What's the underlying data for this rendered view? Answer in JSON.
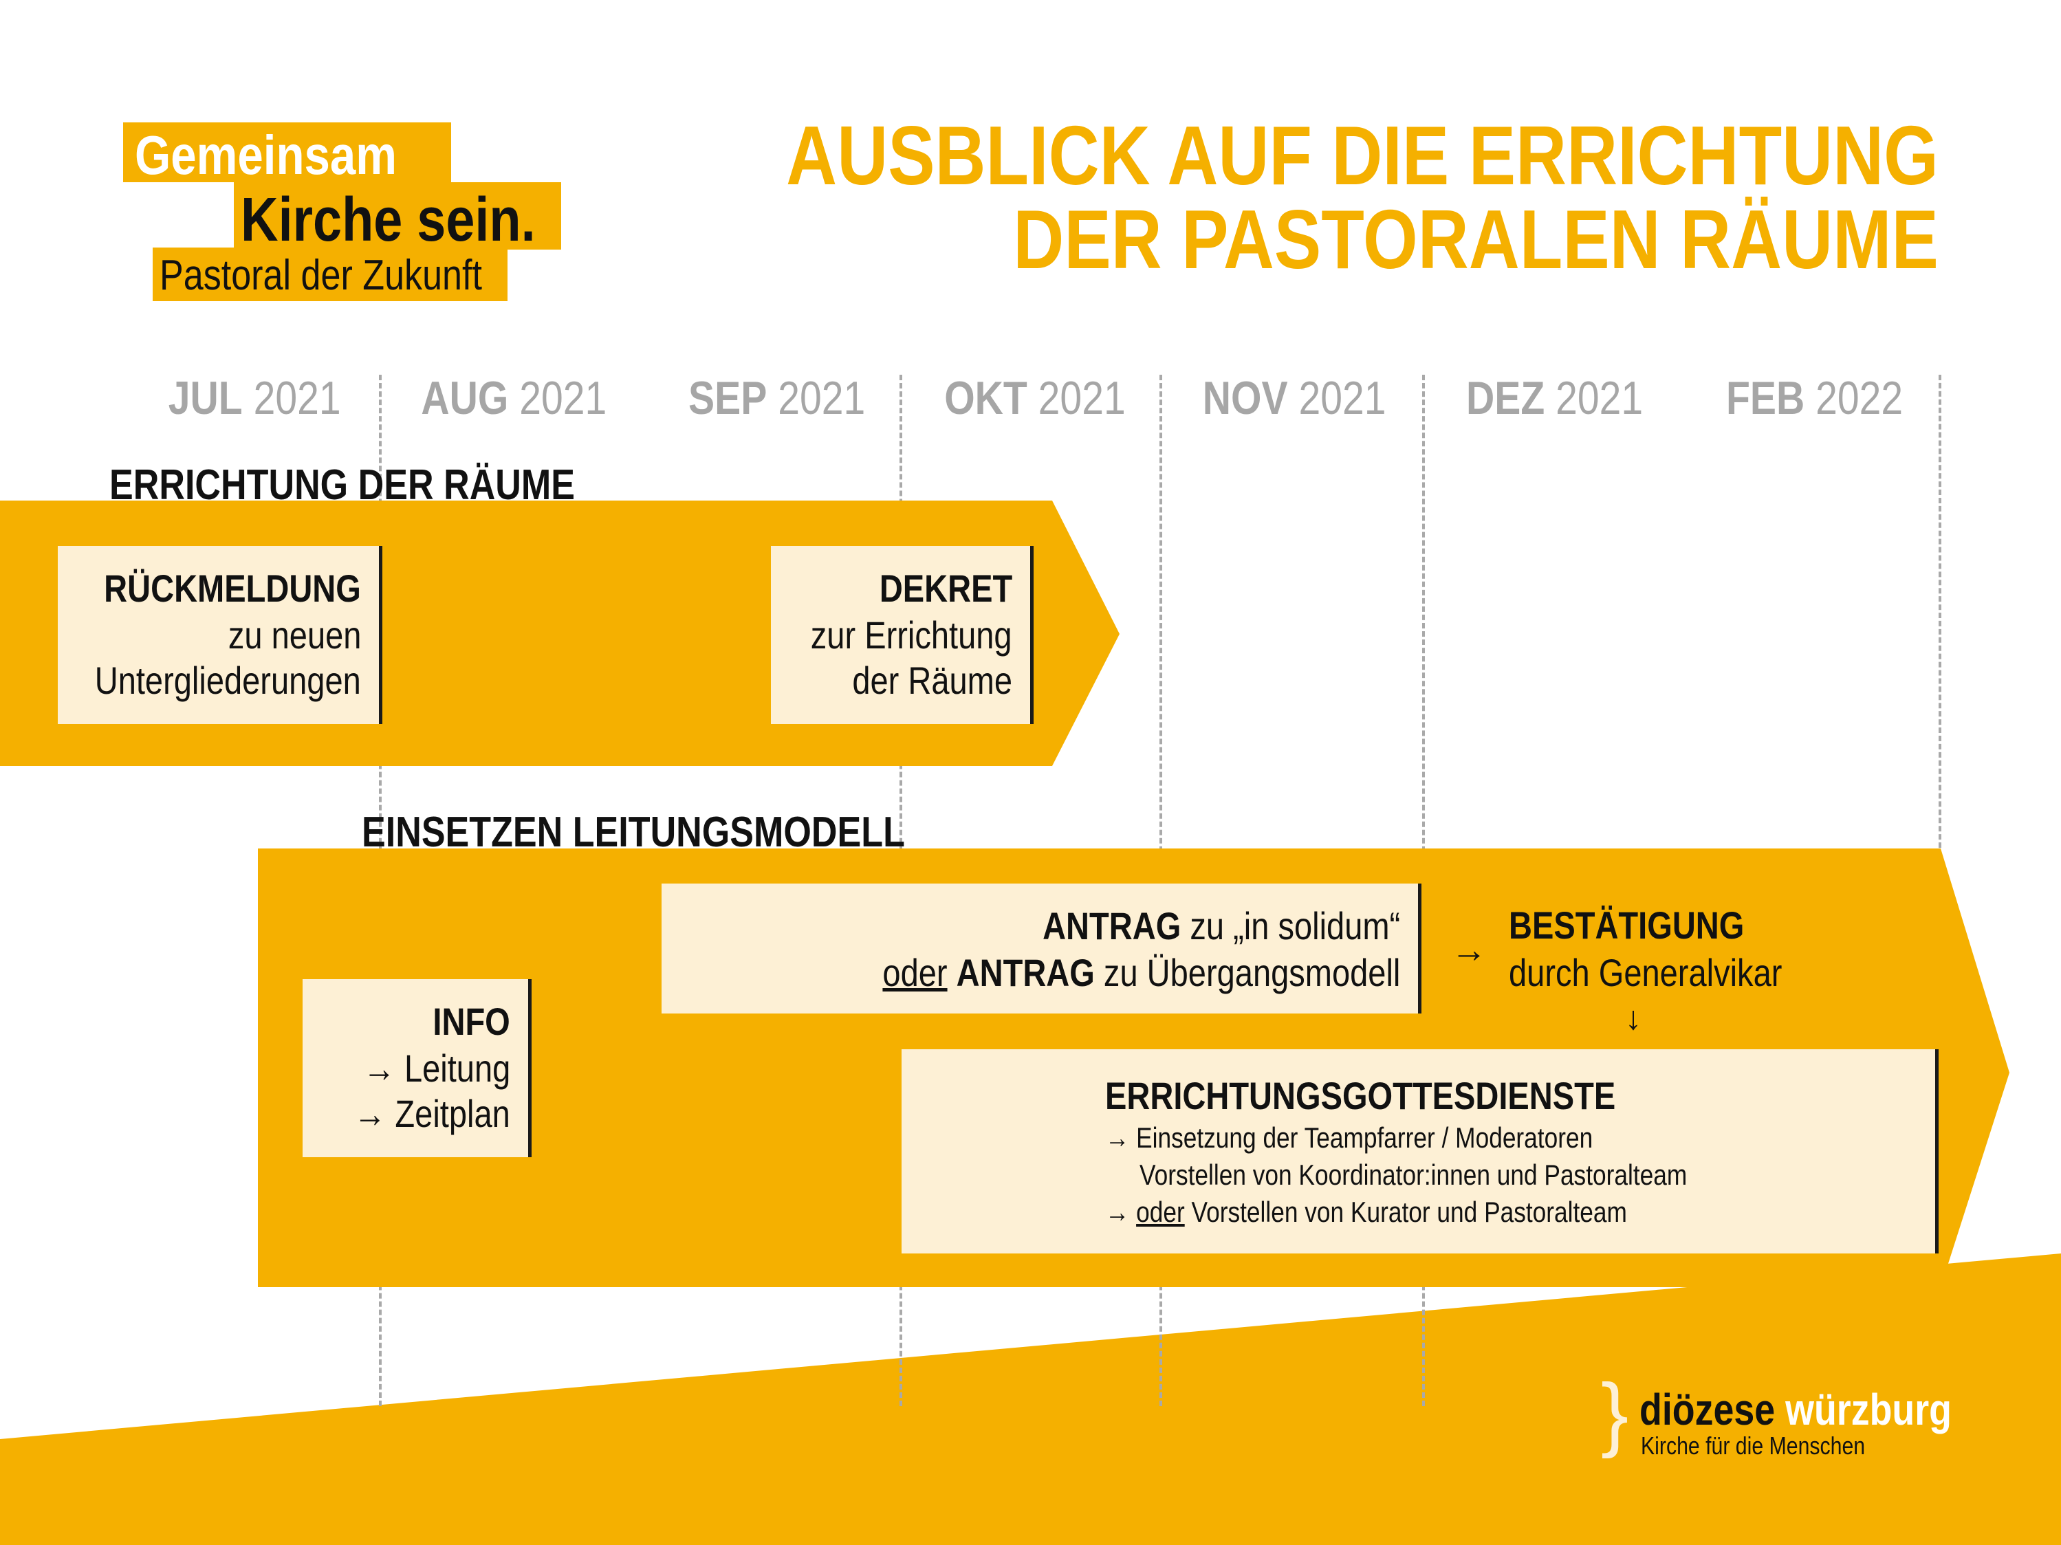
{
  "logo": {
    "line1": "Gemeinsam",
    "line2": "Kirche sein.",
    "line3": "Pastoral der Zukunft"
  },
  "title": {
    "line1": "AUSBLICK AUF DIE ERRICHTUNG",
    "line2": "DER PASTORALEN RÄUME"
  },
  "months": [
    {
      "name": "JUL",
      "year": "2021"
    },
    {
      "name": "AUG",
      "year": "2021"
    },
    {
      "name": "SEP",
      "year": "2021"
    },
    {
      "name": "OKT",
      "year": "2021"
    },
    {
      "name": "NOV",
      "year": "2021"
    },
    {
      "name": "DEZ",
      "year": "2021"
    },
    {
      "name": "FEB",
      "year": "2022"
    }
  ],
  "section1": {
    "heading": "ERRICHTUNG DER RÄUME",
    "rueckmeldung": {
      "title": "RÜCKMELDUNG",
      "line1": "zu neuen",
      "line2": "Untergliederungen"
    },
    "dekret": {
      "title": "DEKRET",
      "line1": "zur Errichtung",
      "line2": "der Räume"
    }
  },
  "section2": {
    "heading": "EINSETZEN LEITUNGSMODELL",
    "info": {
      "title": "INFO",
      "line1": "→ Leitung",
      "line2": "→ Zeitplan"
    },
    "antrag": {
      "antrag1_bold": "ANTRAG",
      "antrag1_rest": " zu „in solidum“",
      "oder": "oder",
      "antrag2_bold": "ANTRAG",
      "antrag2_rest": " zu Übergangsmodell"
    },
    "arrow_right": "→",
    "bestaetigung": {
      "title": "BESTÄTIGUNG",
      "line1": "durch Generalvikar"
    },
    "arrow_down": "↓",
    "gottesdienste": {
      "title": "ERRICHTUNGSGOTTESDIENSTE",
      "bullet1": "→ Einsetzung der Teampfarrer / Moderatoren",
      "line2": "Vorstellen von Koordinator:innen und Pastoralteam",
      "bullet3_arrow": "→ ",
      "bullet3_oder": "oder",
      "bullet3_rest": " Vorstellen von Kurator und Pastoralteam"
    }
  },
  "footer": {
    "brand_bold": "diözese",
    "brand_light": "würzburg",
    "tagline": "Kirche für die Menschen"
  },
  "colors": {
    "accent": "#f5b000",
    "box": "#fdf0d5",
    "grey": "#a6a6a6",
    "text": "#111111"
  }
}
